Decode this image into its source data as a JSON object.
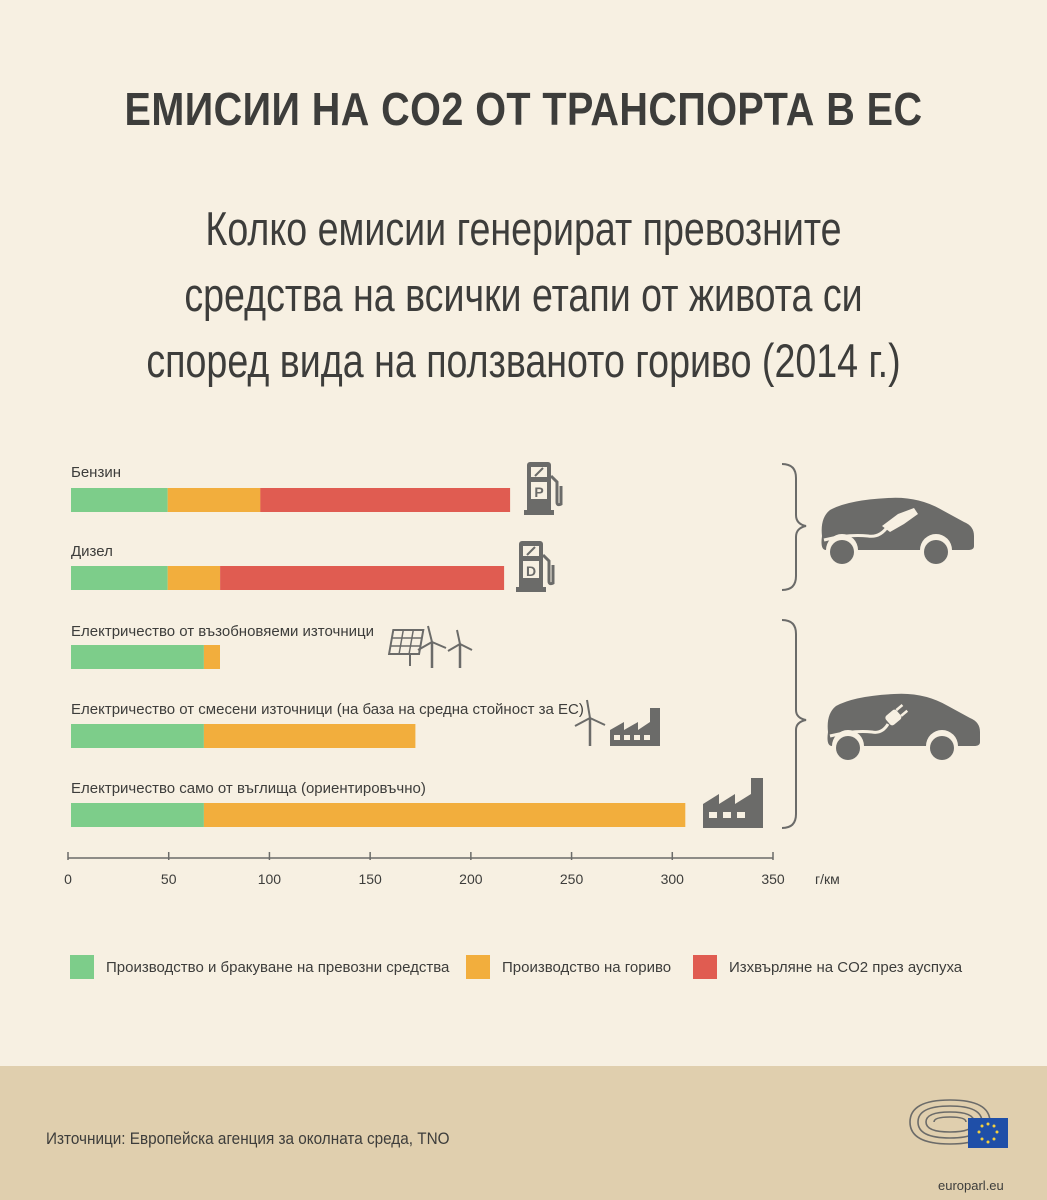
{
  "title": "ЕМИСИИ НА CO2 ОТ ТРАНСПОРТА В ЕС",
  "subtitle_lines": [
    "Колко емисии генерират превозните",
    "средства на всички етапи от живота си",
    "според вида на ползваното гориво (2014 г.)"
  ],
  "colors": {
    "production": "#7dcd8a",
    "fuel": "#f2ae3d",
    "exhaust": "#e05c51",
    "icon": "#6b6b69"
  },
  "chart_data": {
    "type": "bar",
    "orientation": "horizontal",
    "stacked": true,
    "categories": [
      "Бензин",
      "Дизел",
      "Електричество от възобновяеми източници",
      "Електричество от смесени източници (на база на средна стойност за ЕС)",
      "Електричество само от въглища (ориентировъчно)"
    ],
    "series": [
      {
        "name": "Производство и бракуване на превозни средства",
        "values": [
          48,
          48,
          66,
          66,
          66
        ]
      },
      {
        "name": "Производство на гориво",
        "values": [
          46,
          26,
          8,
          105,
          239
        ]
      },
      {
        "name": "Изхвърляне на CO2 през ауспуха",
        "values": [
          124,
          141,
          0,
          0,
          0
        ]
      }
    ],
    "xlim": [
      0,
      350
    ],
    "xticks": [
      0,
      50,
      100,
      150,
      200,
      250,
      300,
      350
    ],
    "xlabel": "г/км",
    "legend_position": "bottom"
  },
  "icons": {
    "row_icons": [
      "petrol-pump-p-icon",
      "diesel-pump-d-icon",
      "solar-wind-icon",
      "wind-factory-icon",
      "factory-icon"
    ],
    "pump_letters": [
      "P",
      "D"
    ],
    "car_groups": [
      "fuel-car-icon",
      "electric-car-icon"
    ]
  },
  "footer": {
    "sources": "Източници: Европейска агенция за околната среда, TNO",
    "logo_text": "europarl.eu"
  }
}
